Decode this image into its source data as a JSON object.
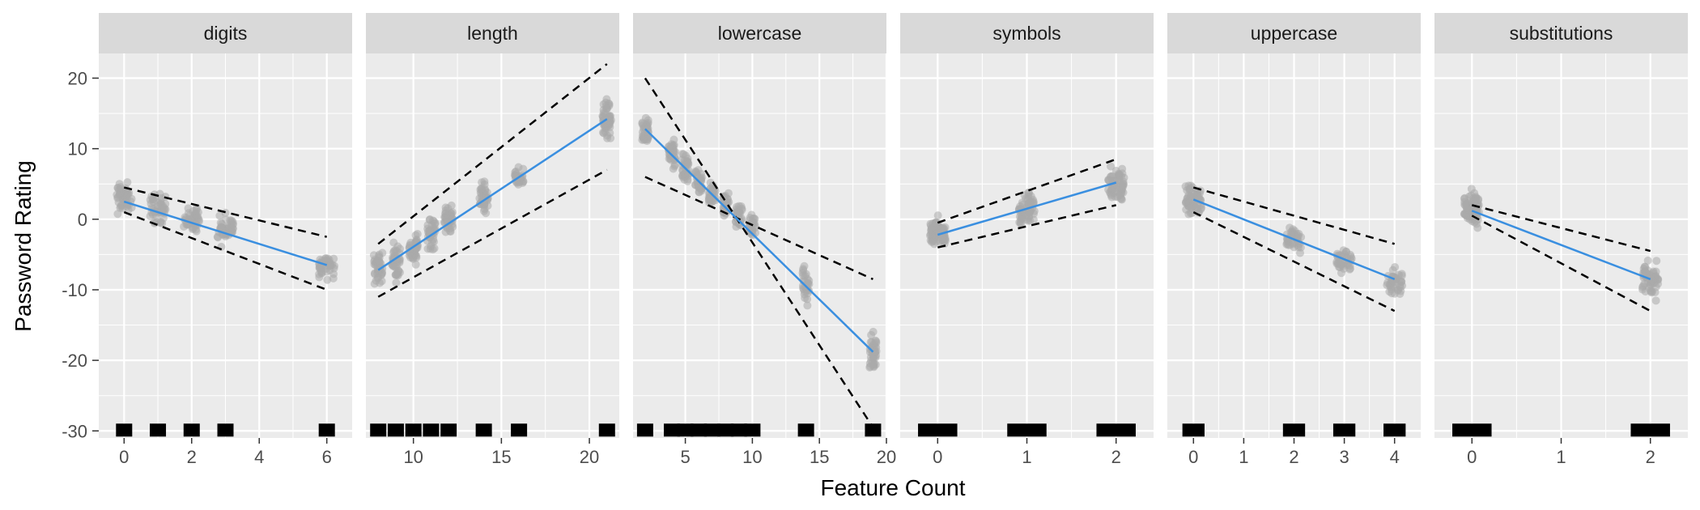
{
  "chart_data": {
    "type": "scatter",
    "xlabel": "Feature Count",
    "ylabel": "Password Rating",
    "ylim": [
      -31,
      23.5
    ],
    "y_ticks": [
      20,
      10,
      0,
      -10,
      -20,
      -30
    ],
    "grid": true,
    "colors": {
      "panel_bg": "#ebebeb",
      "strip_bg": "#d9d9d9",
      "grid": "#ffffff",
      "points": "#a9a9a9",
      "fit": "#3a8fe0",
      "bounds": "#000000",
      "rug": "#000000"
    },
    "panels": [
      {
        "name": "digits",
        "xlim": [
          -0.75,
          6.75
        ],
        "x_ticks": [
          0,
          2,
          4,
          6
        ],
        "groups": [
          {
            "x": 0,
            "center": 3,
            "spread": 3,
            "n": 55
          },
          {
            "x": 1,
            "center": 1.5,
            "spread": 3,
            "n": 45
          },
          {
            "x": 2,
            "center": 0,
            "spread": 2.5,
            "n": 40
          },
          {
            "x": 3,
            "center": -1.5,
            "spread": 3,
            "n": 45
          },
          {
            "x": 6,
            "center": -6.5,
            "spread": 2.5,
            "n": 40
          }
        ],
        "rug": [
          0,
          1,
          2,
          3,
          6
        ],
        "fit": [
          [
            0,
            2.5
          ],
          [
            6,
            -6.5
          ]
        ],
        "upper": [
          [
            0,
            4.5
          ],
          [
            6,
            -2.5
          ]
        ],
        "lower": [
          [
            0,
            1.0
          ],
          [
            6,
            -10.0
          ]
        ]
      },
      {
        "name": "length",
        "xlim": [
          7.3,
          21.7
        ],
        "x_ticks": [
          10,
          15,
          20
        ],
        "groups": [
          {
            "x": 8,
            "center": -7,
            "spread": 3.5,
            "n": 40
          },
          {
            "x": 9,
            "center": -6,
            "spread": 3.5,
            "n": 40
          },
          {
            "x": 10,
            "center": -4,
            "spread": 3,
            "n": 40
          },
          {
            "x": 11,
            "center": -2,
            "spread": 3,
            "n": 40
          },
          {
            "x": 12,
            "center": 0,
            "spread": 2.5,
            "n": 40
          },
          {
            "x": 14,
            "center": 3,
            "spread": 3,
            "n": 40
          },
          {
            "x": 16,
            "center": 6,
            "spread": 2,
            "n": 25
          },
          {
            "x": 21,
            "center": 14,
            "spread": 3.5,
            "n": 60
          }
        ],
        "rug": [
          8,
          9,
          10,
          11,
          12,
          14,
          16,
          21
        ],
        "fit": [
          [
            8,
            -7.2
          ],
          [
            21,
            14.2
          ]
        ],
        "upper": [
          [
            8,
            -3.5
          ],
          [
            21,
            22.0
          ]
        ],
        "lower": [
          [
            8,
            -11.0
          ],
          [
            21,
            7.0
          ]
        ]
      },
      {
        "name": "lowercase",
        "xlim": [
          1.1,
          20.0
        ],
        "x_ticks": [
          5,
          10,
          15,
          20
        ],
        "groups": [
          {
            "x": 2,
            "center": 12.5,
            "spread": 3,
            "n": 35
          },
          {
            "x": 4,
            "center": 9,
            "spread": 3,
            "n": 35
          },
          {
            "x": 5,
            "center": 7,
            "spread": 3,
            "n": 35
          },
          {
            "x": 6,
            "center": 5,
            "spread": 3,
            "n": 35
          },
          {
            "x": 7,
            "center": 3.5,
            "spread": 2.5,
            "n": 30
          },
          {
            "x": 8,
            "center": 2,
            "spread": 2.5,
            "n": 30
          },
          {
            "x": 9,
            "center": 0.5,
            "spread": 2.5,
            "n": 30
          },
          {
            "x": 10,
            "center": -1,
            "spread": 2.5,
            "n": 30
          },
          {
            "x": 14,
            "center": -9.5,
            "spread": 4,
            "n": 30
          },
          {
            "x": 19,
            "center": -19,
            "spread": 3.5,
            "n": 40
          }
        ],
        "rug": [
          2,
          4,
          5,
          6,
          7,
          8,
          9,
          10,
          14,
          19
        ],
        "fit": [
          [
            2,
            12.8
          ],
          [
            19,
            -18.8
          ]
        ],
        "upper": [
          [
            2,
            20.0
          ],
          [
            19,
            -29.5
          ]
        ],
        "lower": [
          [
            2,
            6.0
          ],
          [
            19,
            -8.5
          ]
        ]
      },
      {
        "name": "symbols",
        "xlim": [
          -0.42,
          2.42
        ],
        "x_ticks": [
          0,
          1,
          2
        ],
        "groups": [
          {
            "x": 0,
            "center": -2,
            "spread": 3,
            "n": 70
          },
          {
            "x": 1,
            "center": 1.5,
            "spread": 3,
            "n": 55
          },
          {
            "x": 2,
            "center": 5,
            "spread": 3.5,
            "n": 60
          }
        ],
        "rug": [
          0,
          1,
          2
        ],
        "fit": [
          [
            0,
            -2.2
          ],
          [
            2,
            5.2
          ]
        ],
        "upper": [
          [
            0,
            -0.5
          ],
          [
            2,
            8.5
          ]
        ],
        "lower": [
          [
            0,
            -4.0
          ],
          [
            2,
            2.0
          ]
        ]
      },
      {
        "name": "uppercase",
        "xlim": [
          -0.52,
          4.52
        ],
        "x_ticks": [
          0,
          1,
          2,
          3,
          4
        ],
        "groups": [
          {
            "x": 0,
            "center": 3,
            "spread": 4,
            "n": 60
          },
          {
            "x": 2,
            "center": -3,
            "spread": 2.5,
            "n": 35
          },
          {
            "x": 3,
            "center": -6,
            "spread": 2.5,
            "n": 35
          },
          {
            "x": 4,
            "center": -9,
            "spread": 3,
            "n": 40
          }
        ],
        "rug": [
          0,
          2,
          3,
          4
        ],
        "fit": [
          [
            0,
            2.8
          ],
          [
            4,
            -8.5
          ]
        ],
        "upper": [
          [
            0,
            4.5
          ],
          [
            4,
            -3.5
          ]
        ],
        "lower": [
          [
            0,
            1.0
          ],
          [
            4,
            -13.0
          ]
        ]
      },
      {
        "name": "substitutions",
        "xlim": [
          -0.42,
          2.42
        ],
        "x_ticks": [
          0,
          1,
          2
        ],
        "groups": [
          {
            "x": 0,
            "center": 1.5,
            "spread": 3.5,
            "n": 80
          },
          {
            "x": 2,
            "center": -8.5,
            "spread": 3.5,
            "n": 55
          }
        ],
        "rug": [
          0,
          2
        ],
        "fit": [
          [
            0,
            1.2
          ],
          [
            2,
            -8.5
          ]
        ],
        "upper": [
          [
            0,
            2.0
          ],
          [
            2,
            -4.5
          ]
        ],
        "lower": [
          [
            0,
            0.5
          ],
          [
            2,
            -13.0
          ]
        ]
      }
    ]
  }
}
